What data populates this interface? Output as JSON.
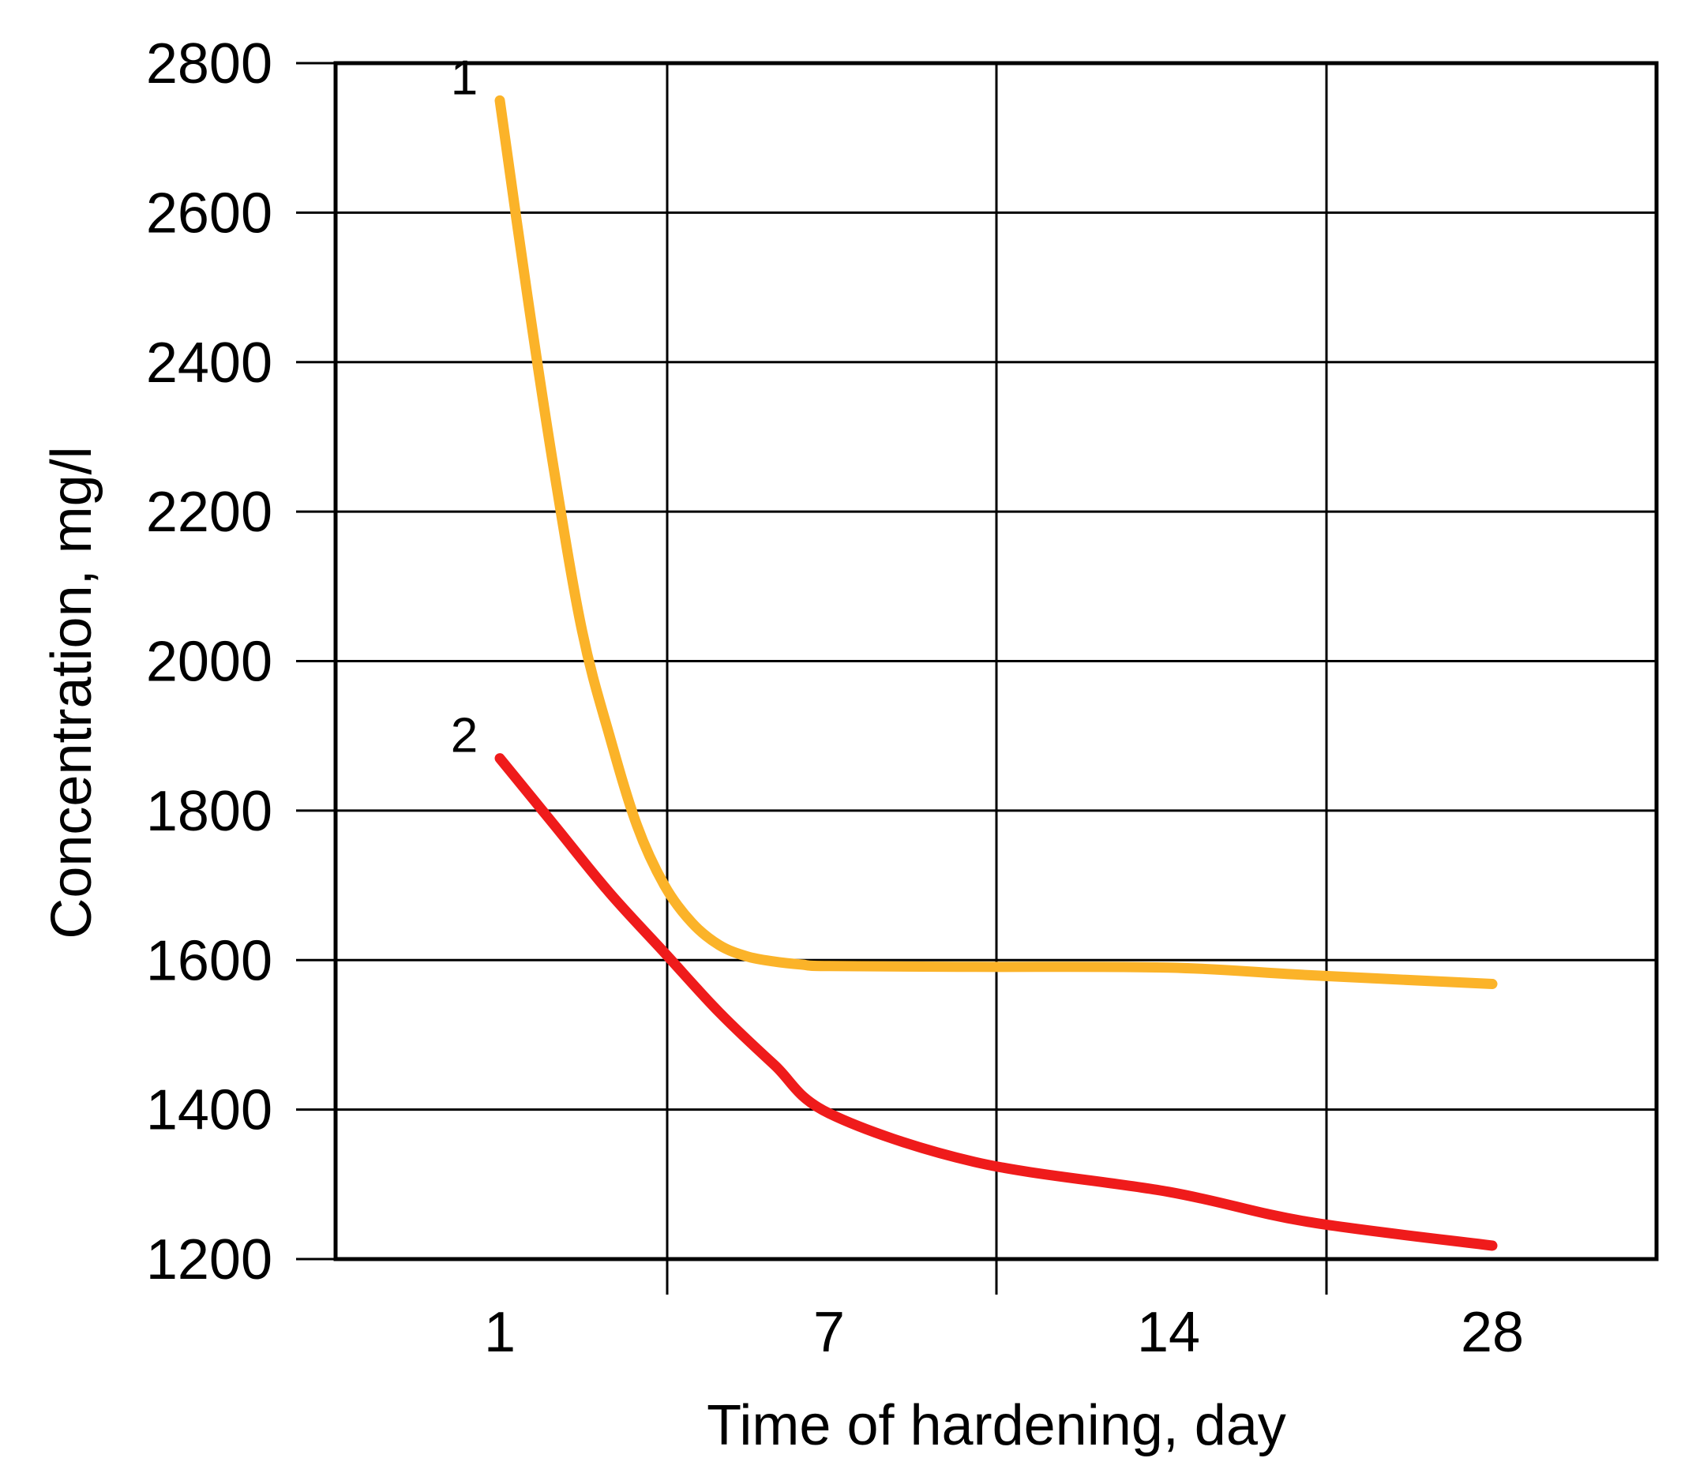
{
  "chart_data": {
    "type": "line",
    "xlabel": "Time of hardening, day",
    "ylabel": "Concentration, mg/l",
    "x_tick_labels": [
      "1",
      "7",
      "14",
      "28"
    ],
    "y_ticks": [
      1200,
      1400,
      1600,
      1800,
      2000,
      2200,
      2400,
      2600,
      2800
    ],
    "ylim": [
      1200,
      2800
    ],
    "grid": true,
    "series": [
      {
        "name": "1",
        "color": "#FBB329",
        "x": [
          1,
          1.5,
          2,
          2.5,
          3,
          3.5,
          4,
          4.5,
          5,
          5.5,
          6,
          6.5,
          7,
          10,
          14,
          20,
          28
        ],
        "values": [
          2750,
          2490,
          2250,
          2040,
          1900,
          1780,
          1700,
          1650,
          1620,
          1605,
          1598,
          1594,
          1592,
          1591,
          1590,
          1580,
          1568
        ]
      },
      {
        "name": "2",
        "color": "#EF1B1B",
        "x": [
          1,
          2,
          3,
          4,
          5,
          6,
          7,
          10,
          14,
          20,
          28
        ],
        "values": [
          1870,
          1780,
          1690,
          1610,
          1530,
          1460,
          1395,
          1330,
          1290,
          1250,
          1218
        ]
      }
    ]
  }
}
